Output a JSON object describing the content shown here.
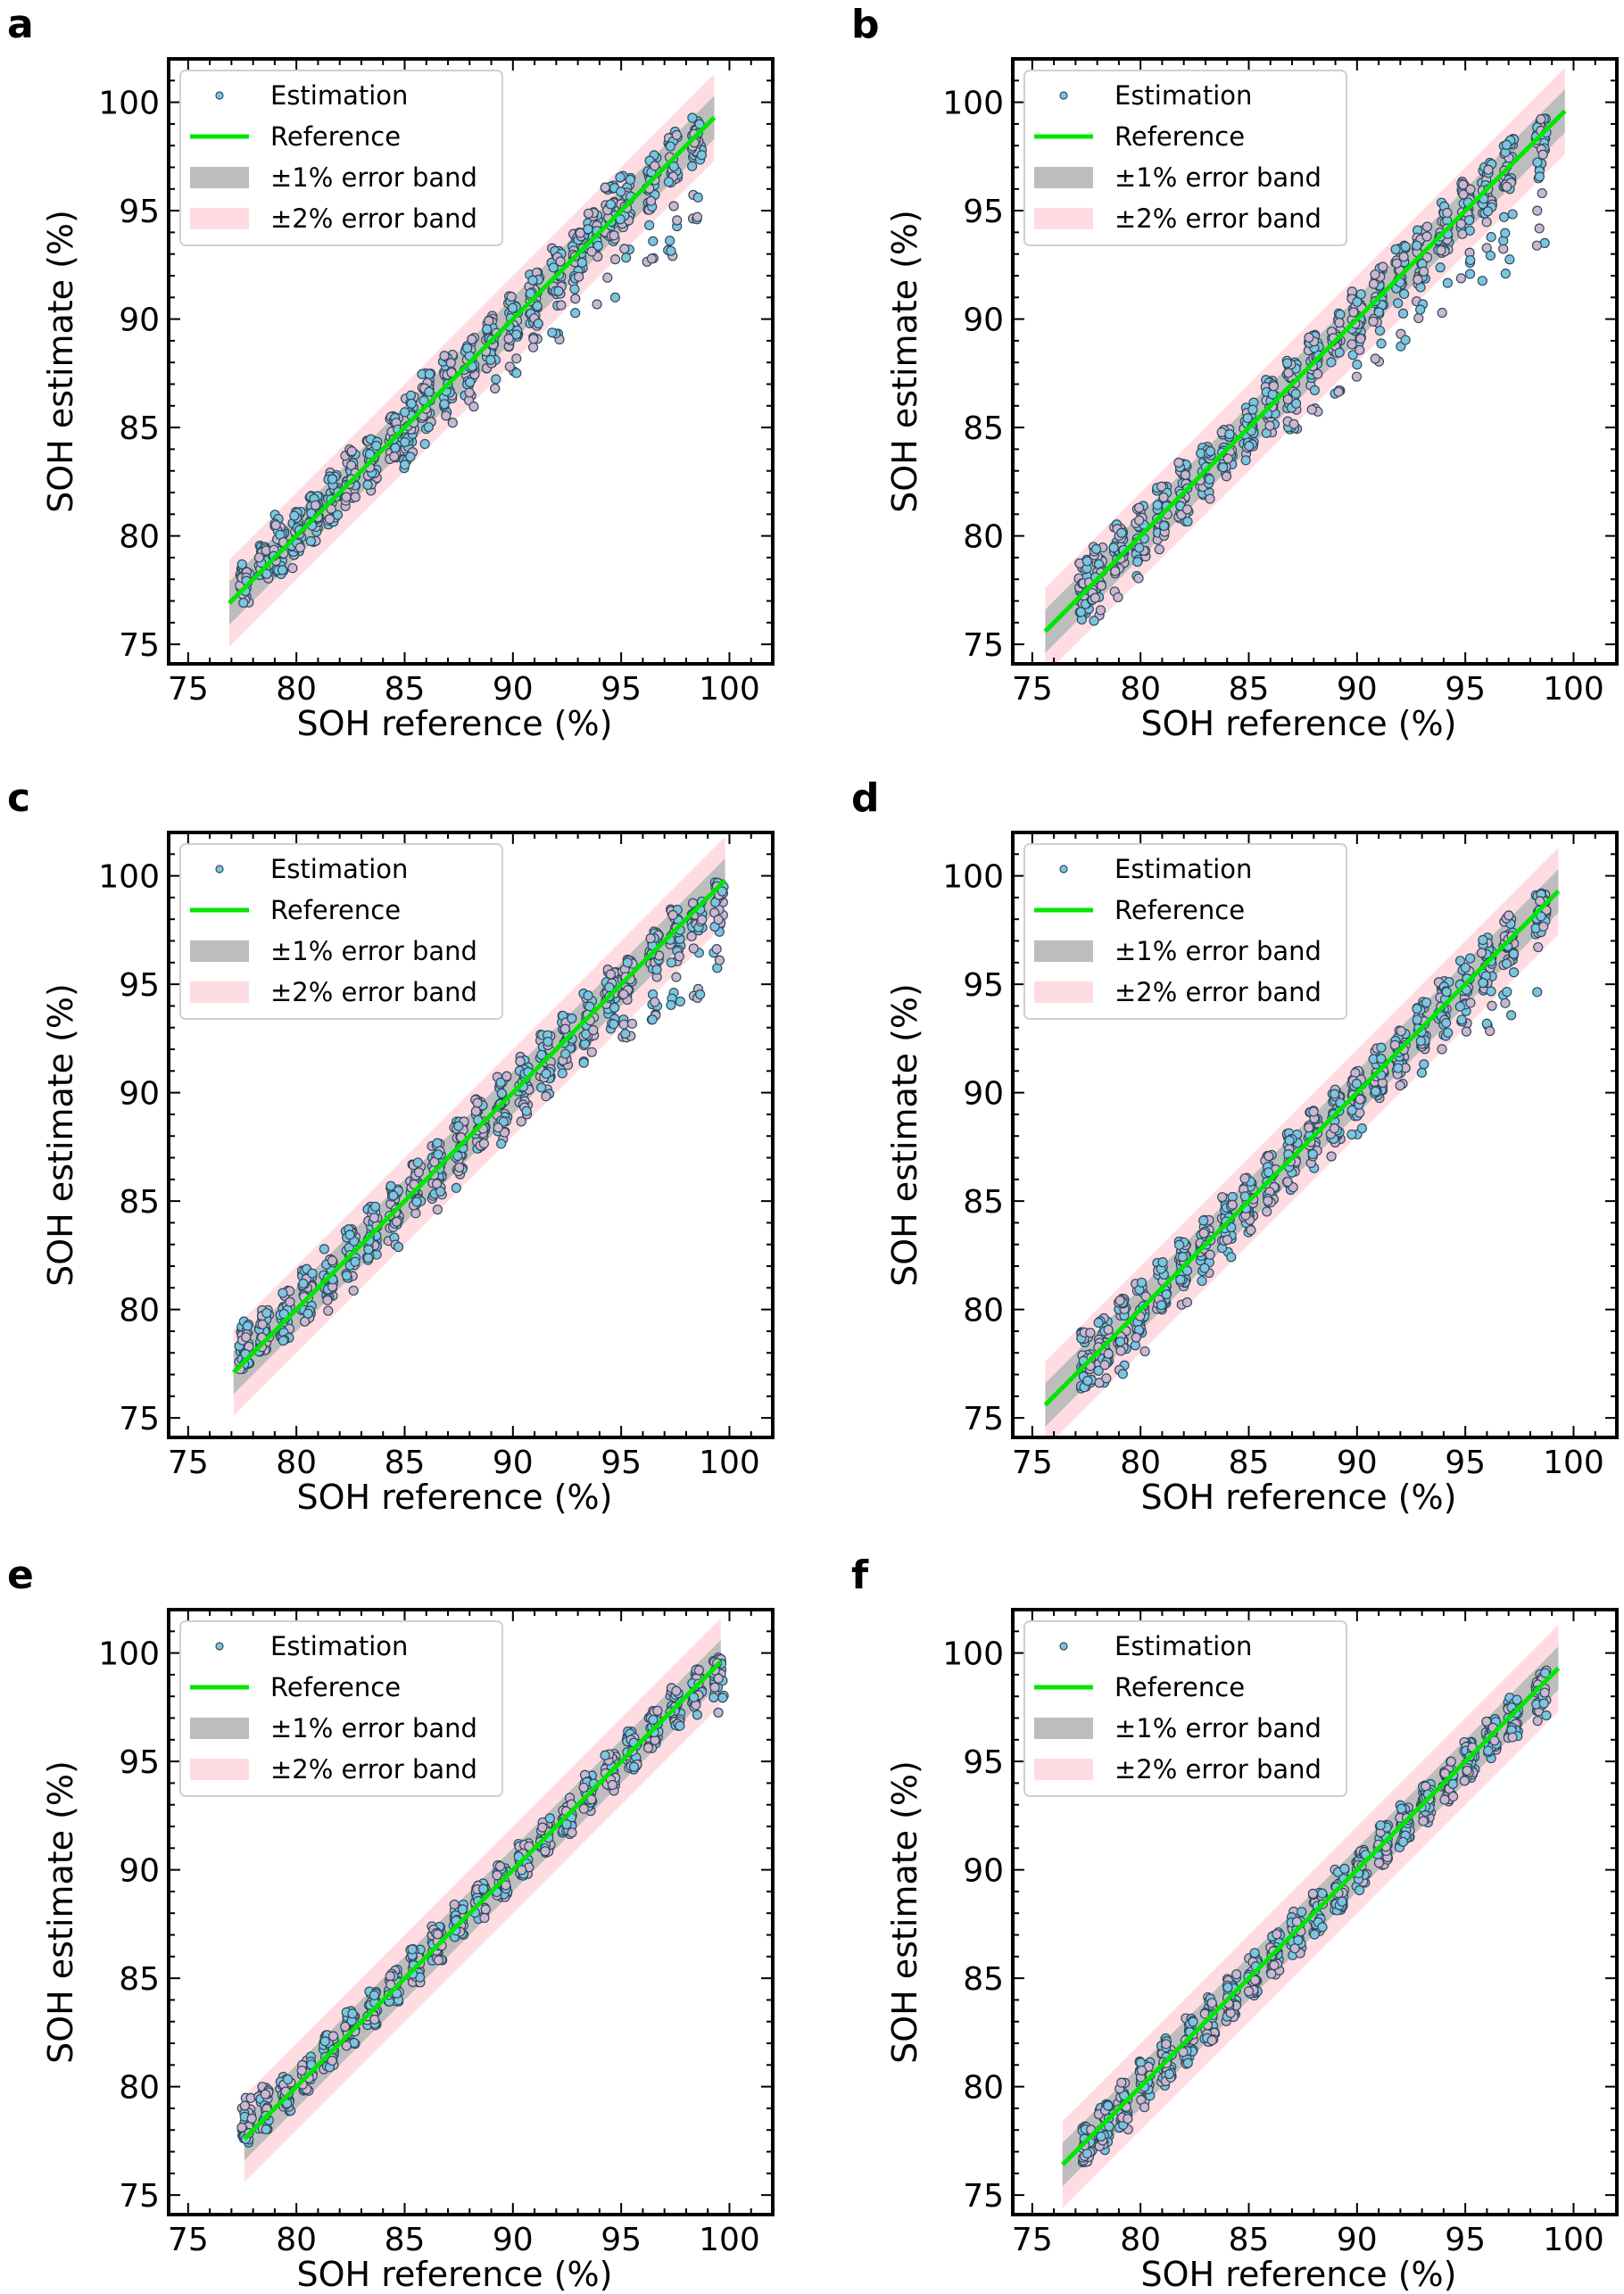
{
  "colors": {
    "reference": "#00e600",
    "band1": "#bdbdbd",
    "band2": "#ffdce1",
    "point_blue": "#7ec4df",
    "point_lavender": "#cdb6cf",
    "point_edge": "#2f4b5c"
  },
  "chart_data": [
    {
      "panel": "a",
      "type": "scatter",
      "xlabel": "SOH reference (%)",
      "ylabel": "SOH estimate (%)",
      "xlim": [
        74.1,
        102.0
      ],
      "ylim": [
        74.1,
        102.0
      ],
      "xticks": [
        75,
        80,
        85,
        90,
        95,
        100
      ],
      "yticks": [
        75,
        80,
        85,
        90,
        95,
        100
      ],
      "legend": {
        "placement": "upper-left",
        "entries": [
          "Estimation",
          "Reference",
          "±1% error band",
          "±2% error band"
        ]
      },
      "reference_line": [
        76.9,
        99.3
      ],
      "bands": [
        1,
        2
      ],
      "columns": [
        [
          77.6,
          76.9,
          78.7
        ],
        [
          78.5,
          78.0,
          79.6
        ],
        [
          79.2,
          78.2,
          81.0
        ],
        [
          80.0,
          78.2,
          81.2
        ],
        [
          80.8,
          79.5,
          82.0
        ],
        [
          81.7,
          80.5,
          83.0
        ],
        [
          82.5,
          81.0,
          84.0
        ],
        [
          83.5,
          82.0,
          84.6
        ],
        [
          84.5,
          83.5,
          85.6
        ],
        [
          85.2,
          83.0,
          86.5
        ],
        [
          86.0,
          84.0,
          87.5
        ],
        [
          87.0,
          85.0,
          88.4
        ],
        [
          88.0,
          85.8,
          89.2
        ],
        [
          89.0,
          86.5,
          90.2
        ],
        [
          90.0,
          87.5,
          91.1
        ],
        [
          91.0,
          88.5,
          92.2
        ],
        [
          92.0,
          89.0,
          93.4
        ],
        [
          93.0,
          90.0,
          94.0
        ],
        [
          93.7,
          90.2,
          95.0
        ],
        [
          94.5,
          90.8,
          96.2
        ],
        [
          95.2,
          91.5,
          96.6
        ],
        [
          96.4,
          92.3,
          97.6
        ],
        [
          97.4,
          92.9,
          98.7
        ],
        [
          98.5,
          93.6,
          99.3
        ]
      ]
    },
    {
      "panel": "b",
      "type": "scatter",
      "xlabel": "SOH reference (%)",
      "ylabel": "SOH estimate (%)",
      "xlim": [
        74.1,
        102.0
      ],
      "ylim": [
        74.1,
        102.0
      ],
      "xticks": [
        75,
        80,
        85,
        90,
        95,
        100
      ],
      "yticks": [
        75,
        80,
        85,
        90,
        95,
        100
      ],
      "legend": {
        "placement": "upper-left",
        "entries": [
          "Estimation",
          "Reference",
          "±1% error band",
          "±2% error band"
        ]
      },
      "reference_line": [
        75.6,
        99.6
      ],
      "bands": [
        1,
        2
      ],
      "columns": [
        [
          77.4,
          75.8,
          79.0
        ],
        [
          78.0,
          76.0,
          79.5
        ],
        [
          79.0,
          77.0,
          80.6
        ],
        [
          80.0,
          78.0,
          81.5
        ],
        [
          81.0,
          79.2,
          82.3
        ],
        [
          82.0,
          80.6,
          83.4
        ],
        [
          83.0,
          81.7,
          84.2
        ],
        [
          84.0,
          82.4,
          85.2
        ],
        [
          85.0,
          83.2,
          86.3
        ],
        [
          86.0,
          84.0,
          87.2
        ],
        [
          87.0,
          84.8,
          88.2
        ],
        [
          88.0,
          85.7,
          89.3
        ],
        [
          89.0,
          86.5,
          90.3
        ],
        [
          90.0,
          87.3,
          91.3
        ],
        [
          91.0,
          88.0,
          92.5
        ],
        [
          92.0,
          88.5,
          93.4
        ],
        [
          93.0,
          89.5,
          94.3
        ],
        [
          94.0,
          90.0,
          95.5
        ],
        [
          95.0,
          91.0,
          96.4
        ],
        [
          96.0,
          91.5,
          97.3
        ],
        [
          97.0,
          92.0,
          98.4
        ],
        [
          98.5,
          92.5,
          99.4
        ]
      ]
    },
    {
      "panel": "c",
      "type": "scatter",
      "xlabel": "SOH reference (%)",
      "ylabel": "SOH estimate (%)",
      "xlim": [
        74.1,
        102.0
      ],
      "ylim": [
        74.1,
        102.0
      ],
      "xticks": [
        75,
        80,
        85,
        90,
        95,
        100
      ],
      "yticks": [
        75,
        80,
        85,
        90,
        95,
        100
      ],
      "legend": {
        "placement": "upper-left",
        "entries": [
          "Estimation",
          "Reference",
          "±1% error band",
          "±2% error band"
        ]
      },
      "reference_line": [
        77.1,
        99.8
      ],
      "bands": [
        1,
        2
      ],
      "columns": [
        [
          77.6,
          77.0,
          79.5
        ],
        [
          78.5,
          78.0,
          80.0
        ],
        [
          79.5,
          78.5,
          81.0
        ],
        [
          80.5,
          78.8,
          82.0
        ],
        [
          81.5,
          79.8,
          82.8
        ],
        [
          82.5,
          80.8,
          83.8
        ],
        [
          83.5,
          81.8,
          84.8
        ],
        [
          84.5,
          82.7,
          85.8
        ],
        [
          85.5,
          83.7,
          86.8
        ],
        [
          86.5,
          84.6,
          87.7
        ],
        [
          87.5,
          85.6,
          88.7
        ],
        [
          88.5,
          86.6,
          89.7
        ],
        [
          89.5,
          87.5,
          90.8
        ],
        [
          90.5,
          88.6,
          91.7
        ],
        [
          91.5,
          89.6,
          92.7
        ],
        [
          92.5,
          90.5,
          93.6
        ],
        [
          93.5,
          91.3,
          94.6
        ],
        [
          94.5,
          92.0,
          95.7
        ],
        [
          95.3,
          92.5,
          96.2
        ],
        [
          96.5,
          93.3,
          97.5
        ],
        [
          97.5,
          94.0,
          98.5
        ],
        [
          98.5,
          94.3,
          99.3
        ],
        [
          99.5,
          94.3,
          99.8
        ]
      ]
    },
    {
      "panel": "d",
      "type": "scatter",
      "xlabel": "SOH reference (%)",
      "ylabel": "SOH estimate (%)",
      "xlim": [
        74.1,
        102.0
      ],
      "ylim": [
        74.1,
        102.0
      ],
      "xticks": [
        75,
        80,
        85,
        90,
        95,
        100
      ],
      "yticks": [
        75,
        80,
        85,
        90,
        95,
        100
      ],
      "legend": {
        "placement": "upper-left",
        "entries": [
          "Estimation",
          "Reference",
          "±1% error band",
          "±2% error band"
        ]
      },
      "reference_line": [
        75.6,
        99.3
      ],
      "bands": [
        1,
        2
      ],
      "columns": [
        [
          77.5,
          75.8,
          79.0
        ],
        [
          78.3,
          76.5,
          79.6
        ],
        [
          79.2,
          77.0,
          80.5
        ],
        [
          80.0,
          77.5,
          81.3
        ],
        [
          81.0,
          78.8,
          82.2
        ],
        [
          82.0,
          80.2,
          83.2
        ],
        [
          83.0,
          81.3,
          84.2
        ],
        [
          84.0,
          82.3,
          85.2
        ],
        [
          85.0,
          83.3,
          86.2
        ],
        [
          86.0,
          84.2,
          87.2
        ],
        [
          87.0,
          85.2,
          88.2
        ],
        [
          88.0,
          86.2,
          89.2
        ],
        [
          89.0,
          87.0,
          90.2
        ],
        [
          90.0,
          88.0,
          91.2
        ],
        [
          91.0,
          89.0,
          92.3
        ],
        [
          92.0,
          89.8,
          93.2
        ],
        [
          93.0,
          90.8,
          94.2
        ],
        [
          94.0,
          91.5,
          95.2
        ],
        [
          95.0,
          92.2,
          96.2
        ],
        [
          96.0,
          92.8,
          97.2
        ],
        [
          97.0,
          93.5,
          98.2
        ],
        [
          98.5,
          94.0,
          99.2
        ]
      ]
    },
    {
      "panel": "e",
      "type": "scatter",
      "xlabel": "SOH reference (%)",
      "ylabel": "SOH estimate (%)",
      "xlim": [
        74.1,
        102.0
      ],
      "ylim": [
        74.1,
        102.0
      ],
      "xticks": [
        75,
        80,
        85,
        90,
        95,
        100
      ],
      "yticks": [
        75,
        80,
        85,
        90,
        95,
        100
      ],
      "legend": {
        "placement": "upper-left",
        "entries": [
          "Estimation",
          "Reference",
          "±1% error band",
          "±2% error band"
        ]
      },
      "reference_line": [
        77.6,
        99.6
      ],
      "bands": [
        1,
        2
      ],
      "columns": [
        [
          77.7,
          77.3,
          79.5
        ],
        [
          78.5,
          78.0,
          80.0
        ],
        [
          79.5,
          78.8,
          80.6
        ],
        [
          80.5,
          79.8,
          81.4
        ],
        [
          81.5,
          80.8,
          82.5
        ],
        [
          82.5,
          81.8,
          83.5
        ],
        [
          83.5,
          82.8,
          84.4
        ],
        [
          84.5,
          83.8,
          85.4
        ],
        [
          85.5,
          84.8,
          86.4
        ],
        [
          86.5,
          85.8,
          87.4
        ],
        [
          87.5,
          86.8,
          88.4
        ],
        [
          88.5,
          87.7,
          89.4
        ],
        [
          89.5,
          88.7,
          90.4
        ],
        [
          90.5,
          89.7,
          91.4
        ],
        [
          91.5,
          90.7,
          92.4
        ],
        [
          92.5,
          91.6,
          93.4
        ],
        [
          93.5,
          92.6,
          94.4
        ],
        [
          94.5,
          93.6,
          95.4
        ],
        [
          95.5,
          94.6,
          96.4
        ],
        [
          96.5,
          95.6,
          97.4
        ],
        [
          97.5,
          96.6,
          98.4
        ],
        [
          98.5,
          96.8,
          99.3
        ],
        [
          99.5,
          97.0,
          99.8
        ]
      ]
    },
    {
      "panel": "f",
      "type": "scatter",
      "xlabel": "SOH reference (%)",
      "ylabel": "SOH estimate (%)",
      "xlim": [
        74.1,
        102.0
      ],
      "ylim": [
        74.1,
        102.0
      ],
      "xticks": [
        75,
        80,
        85,
        90,
        95,
        100
      ],
      "yticks": [
        75,
        80,
        85,
        90,
        95,
        100
      ],
      "legend": {
        "placement": "upper-left",
        "entries": [
          "Estimation",
          "Reference",
          "±1% error band",
          "±2% error band"
        ]
      },
      "reference_line": [
        76.4,
        99.3
      ],
      "bands": [
        1,
        2
      ],
      "columns": [
        [
          77.5,
          76.5,
          78.2
        ],
        [
          78.3,
          77.0,
          79.2
        ],
        [
          79.2,
          78.0,
          80.2
        ],
        [
          80.2,
          79.0,
          81.2
        ],
        [
          81.2,
          80.0,
          82.3
        ],
        [
          82.2,
          81.0,
          83.2
        ],
        [
          83.2,
          82.0,
          84.2
        ],
        [
          84.2,
          83.0,
          85.2
        ],
        [
          85.2,
          84.0,
          86.2
        ],
        [
          86.2,
          85.0,
          87.2
        ],
        [
          87.2,
          86.0,
          88.1
        ],
        [
          88.2,
          87.0,
          89.1
        ],
        [
          89.2,
          88.0,
          90.1
        ],
        [
          90.2,
          89.0,
          91.1
        ],
        [
          91.2,
          90.0,
          92.1
        ],
        [
          92.2,
          91.0,
          93.0
        ],
        [
          93.2,
          92.0,
          94.0
        ],
        [
          94.2,
          93.0,
          95.0
        ],
        [
          95.2,
          94.0,
          96.0
        ],
        [
          96.2,
          95.0,
          97.0
        ],
        [
          97.2,
          96.0,
          98.0
        ],
        [
          98.5,
          96.8,
          99.2
        ]
      ]
    }
  ]
}
